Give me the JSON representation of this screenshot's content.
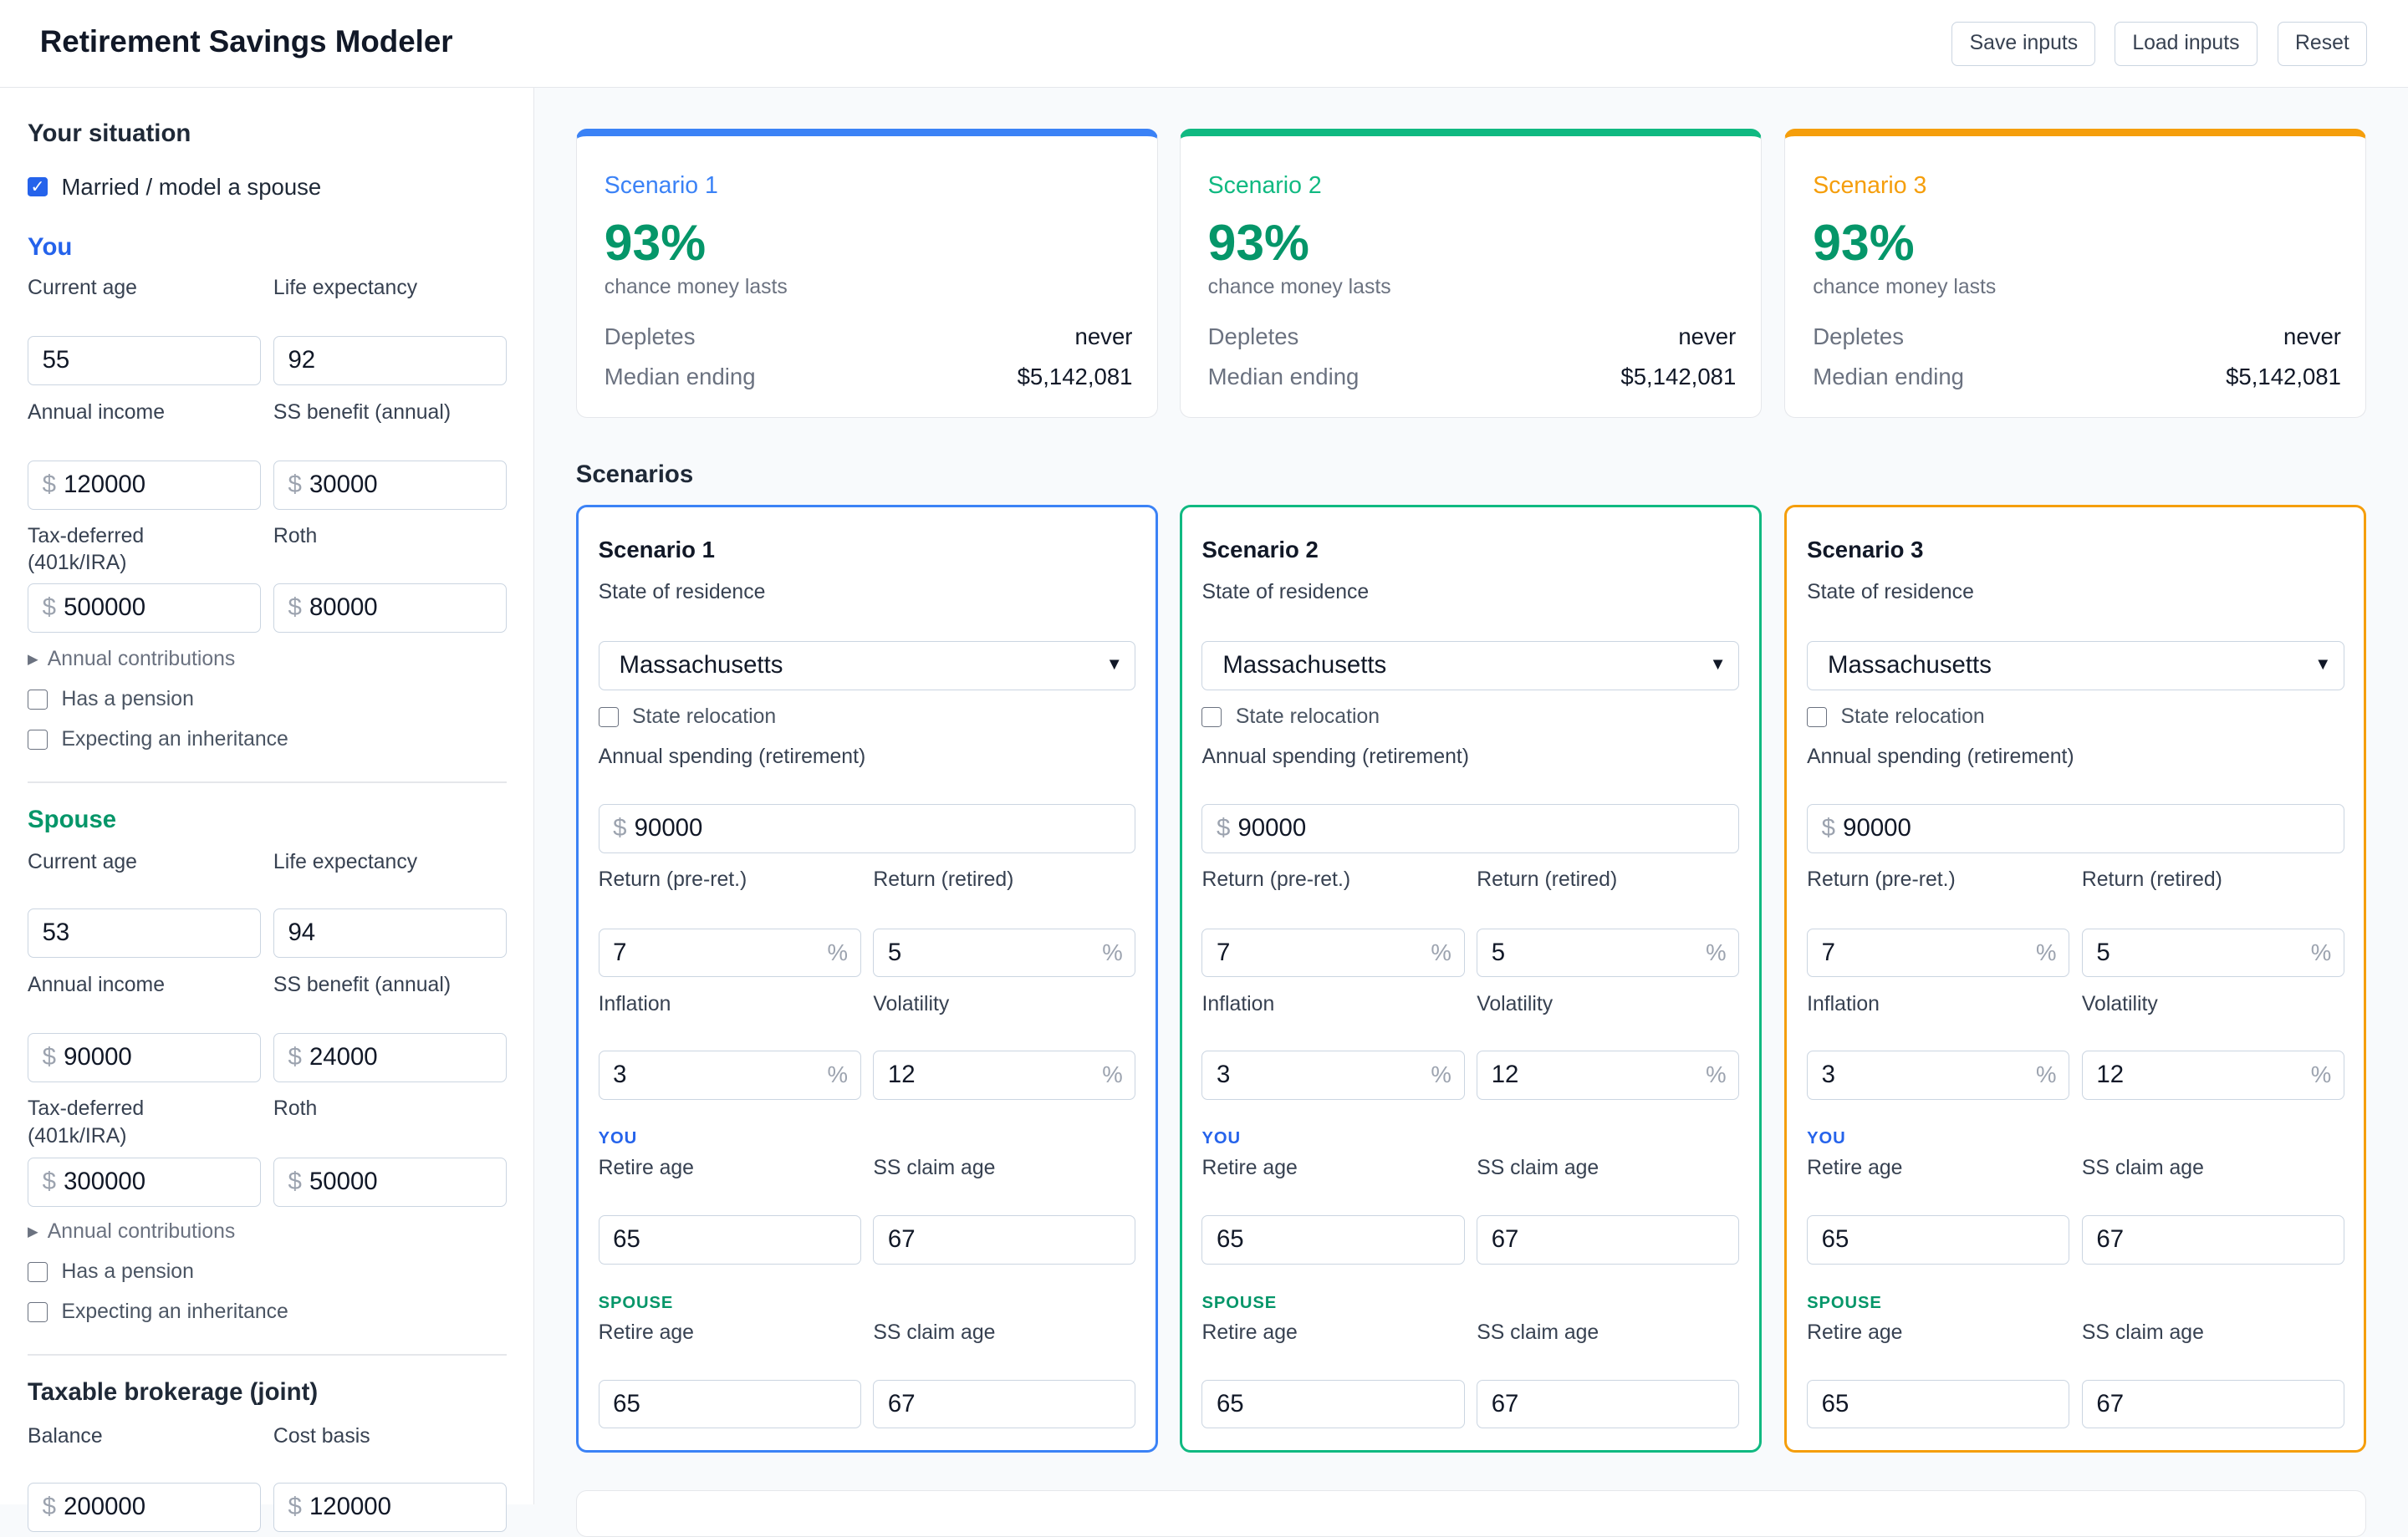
{
  "app": {
    "title": "Retirement Savings Modeler",
    "buttons": {
      "save": "Save inputs",
      "load": "Load inputs",
      "reset": "Reset"
    }
  },
  "sidebar": {
    "title": "Your situation",
    "married_label": "Married / model a spouse",
    "married_checked": true,
    "you": {
      "heading": "You",
      "current_age_label": "Current age",
      "current_age": "55",
      "life_expectancy_label": "Life expectancy",
      "life_expectancy": "92",
      "annual_income_label": "Annual income",
      "annual_income": "120000",
      "ss_benefit_label": "SS benefit (annual)",
      "ss_benefit": "30000",
      "tax_deferred_label_1": "Tax-deferred",
      "tax_deferred_label_2": "(401k/IRA)",
      "tax_deferred": "500000",
      "roth_label": "Roth",
      "roth": "80000",
      "contributions_label": "Annual contributions",
      "pension_label": "Has a pension",
      "inheritance_label": "Expecting an inheritance"
    },
    "spouse": {
      "heading": "Spouse",
      "current_age_label": "Current age",
      "current_age": "53",
      "life_expectancy_label": "Life expectancy",
      "life_expectancy": "94",
      "annual_income_label": "Annual income",
      "annual_income": "90000",
      "ss_benefit_label": "SS benefit (annual)",
      "ss_benefit": "24000",
      "tax_deferred_label_1": "Tax-deferred",
      "tax_deferred_label_2": "(401k/IRA)",
      "tax_deferred": "300000",
      "roth_label": "Roth",
      "roth": "50000",
      "contributions_label": "Annual contributions",
      "pension_label": "Has a pension",
      "inheritance_label": "Expecting an inheritance"
    },
    "brokerage": {
      "heading": "Taxable brokerage (joint)",
      "balance_label": "Balance",
      "balance": "200000",
      "cost_basis_label": "Cost basis",
      "cost_basis": "120000"
    },
    "currency_symbol": "$"
  },
  "summary": [
    {
      "name": "Scenario 1",
      "color": "#3b82f6",
      "pct": "93%",
      "pct_sub": "chance money lasts",
      "depletes_label": "Depletes",
      "depletes": "never",
      "median_label": "Median ending",
      "median": "$5,142,081"
    },
    {
      "name": "Scenario 2",
      "color": "#10b981",
      "pct": "93%",
      "pct_sub": "chance money lasts",
      "depletes_label": "Depletes",
      "depletes": "never",
      "median_label": "Median ending",
      "median": "$5,142,081"
    },
    {
      "name": "Scenario 3",
      "color": "#f59e0b",
      "pct": "93%",
      "pct_sub": "chance money lasts",
      "depletes_label": "Depletes",
      "depletes": "never",
      "median_label": "Median ending",
      "median": "$5,142,081"
    }
  ],
  "scenarios_heading": "Scenarios",
  "scenarios": [
    {
      "title": "Scenario 1",
      "color": "#3b82f6",
      "role_color": "#2563eb",
      "state_label": "State of residence",
      "state": "Massachusetts",
      "relocation_label": "State relocation",
      "spending_label": "Annual spending (retirement)",
      "spending": "90000",
      "return_pre_label": "Return (pre-ret.)",
      "return_pre": "7",
      "return_ret_label": "Return (retired)",
      "return_ret": "5",
      "inflation_label": "Inflation",
      "inflation": "3",
      "volatility_label": "Volatility",
      "volatility": "12",
      "you_label": "YOU",
      "you_retire_label": "Retire age",
      "you_retire": "65",
      "you_ss_label": "SS claim age",
      "you_ss": "67",
      "spouse_label": "SPOUSE",
      "spouse_retire_label": "Retire age",
      "spouse_retire": "65",
      "spouse_ss_label": "SS claim age",
      "spouse_ss": "67"
    },
    {
      "title": "Scenario 2",
      "color": "#10b981",
      "role_color": "#2563eb",
      "state_label": "State of residence",
      "state": "Massachusetts",
      "relocation_label": "State relocation",
      "spending_label": "Annual spending (retirement)",
      "spending": "90000",
      "return_pre_label": "Return (pre-ret.)",
      "return_pre": "7",
      "return_ret_label": "Return (retired)",
      "return_ret": "5",
      "inflation_label": "Inflation",
      "inflation": "3",
      "volatility_label": "Volatility",
      "volatility": "12",
      "you_label": "YOU",
      "you_retire_label": "Retire age",
      "you_retire": "65",
      "you_ss_label": "SS claim age",
      "you_ss": "67",
      "spouse_label": "SPOUSE",
      "spouse_retire_label": "Retire age",
      "spouse_retire": "65",
      "spouse_ss_label": "SS claim age",
      "spouse_ss": "67"
    },
    {
      "title": "Scenario 3",
      "color": "#f59e0b",
      "role_color": "#2563eb",
      "state_label": "State of residence",
      "state": "Massachusetts",
      "relocation_label": "State relocation",
      "spending_label": "Annual spending (retirement)",
      "spending": "90000",
      "return_pre_label": "Return (pre-ret.)",
      "return_pre": "7",
      "return_ret_label": "Return (retired)",
      "return_ret": "5",
      "inflation_label": "Inflation",
      "inflation": "3",
      "volatility_label": "Volatility",
      "volatility": "12",
      "you_label": "YOU",
      "you_retire_label": "Retire age",
      "you_retire": "65",
      "you_ss_label": "SS claim age",
      "you_ss": "67",
      "spouse_label": "SPOUSE",
      "spouse_retire_label": "Retire age",
      "spouse_retire": "65",
      "spouse_ss_label": "SS claim age",
      "spouse_ss": "67"
    }
  ],
  "colors": {
    "spouse_accent": "#059669",
    "success": "#059669"
  },
  "icons": {
    "select": "chevron-down-icon",
    "disclosure": "triangle-right-icon",
    "checkbox": "checkmark-icon"
  },
  "percent_symbol": "%"
}
